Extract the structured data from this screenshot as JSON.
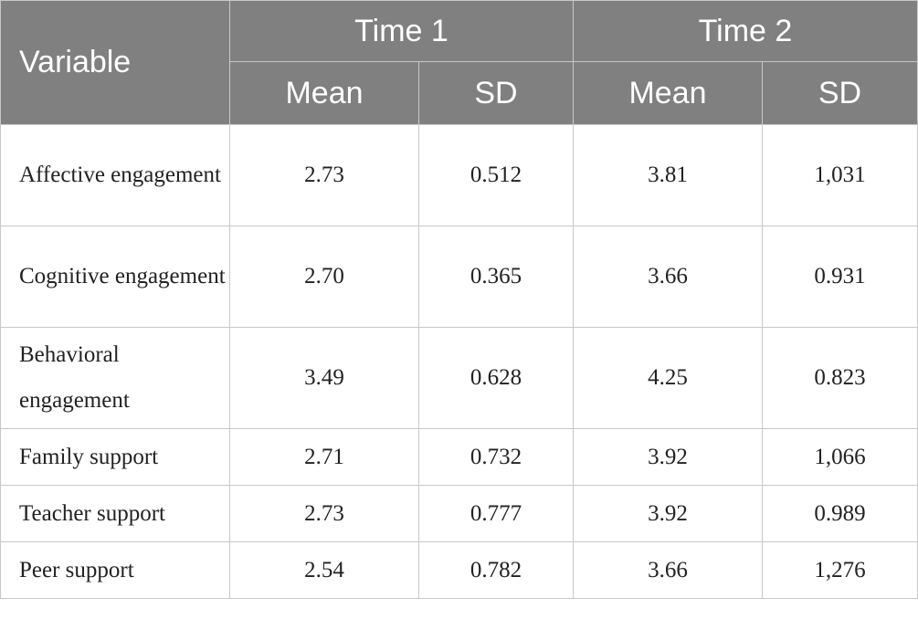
{
  "header": {
    "variable": "Variable",
    "time1": "Time 1",
    "time2": "Time 2",
    "mean1": "Mean",
    "sd1": "SD",
    "mean2": "Mean",
    "sd2": "SD"
  },
  "rows": [
    {
      "label": "Affective engagement",
      "t1_mean": "2.73",
      "t1_sd": "0.512",
      "t2_mean": "3.81",
      "t2_sd": "1,031"
    },
    {
      "label": "Cognitive engagement",
      "t1_mean": "2.70",
      "t1_sd": "0.365",
      "t2_mean": "3.66",
      "t2_sd": "0.931"
    },
    {
      "label": "Behavioral engagement",
      "t1_mean": "3.49",
      "t1_sd": "0.628",
      "t2_mean": "4.25",
      "t2_sd": "0.823"
    },
    {
      "label": "Family support",
      "t1_mean": "2.71",
      "t1_sd": "0.732",
      "t2_mean": "3.92",
      "t2_sd": "1,066"
    },
    {
      "label": "Teacher support",
      "t1_mean": "2.73",
      "t1_sd": "0.777",
      "t2_mean": "3.92",
      "t2_sd": "0.989"
    },
    {
      "label": "Peer support",
      "t1_mean": "2.54",
      "t1_sd": "0.782",
      "t2_mean": "3.66",
      "t2_sd": "1,276"
    }
  ],
  "colors": {
    "header_bg": "#808080",
    "header_text": "#ffffff",
    "border": "#c8c8c8"
  }
}
